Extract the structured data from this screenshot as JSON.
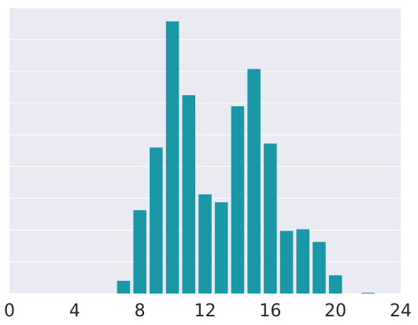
{
  "chart_data": {
    "type": "bar",
    "title": "",
    "xlabel": "",
    "ylabel": "",
    "x": [
      7,
      8,
      9,
      10,
      11,
      12,
      13,
      14,
      15,
      16,
      17,
      18,
      19,
      20,
      22
    ],
    "values": [
      16,
      105,
      184,
      343,
      250,
      125,
      115,
      236,
      283,
      189,
      79,
      81,
      65,
      23,
      1
    ],
    "xlim": [
      0,
      24
    ],
    "ylim": [
      0,
      360
    ],
    "xticks": [
      0,
      4,
      8,
      12,
      16,
      20,
      24
    ],
    "xtick_labels": [
      "0",
      "4",
      "8",
      "12",
      "16",
      "20",
      "24"
    ],
    "y_gridlines": [
      0,
      40,
      80,
      120,
      160,
      200,
      240,
      280,
      320,
      360
    ],
    "ytick_labels_visible": false,
    "grid": true,
    "bar_color": "#1b98a8",
    "background_color": "#eaeaf2",
    "grid_color": "#ffffff"
  }
}
